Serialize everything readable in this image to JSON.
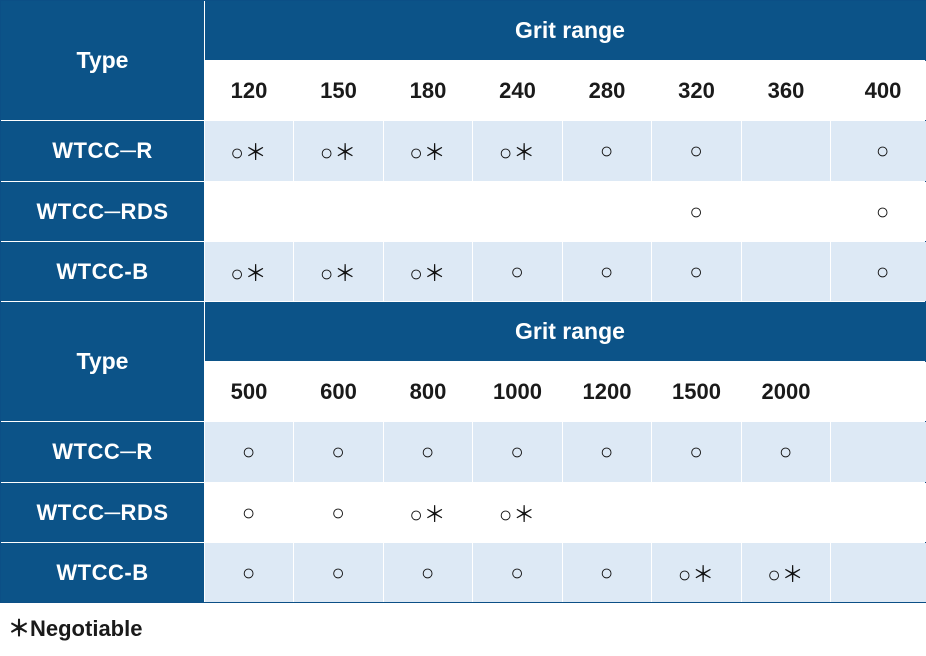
{
  "table1": {
    "type_header": "Type",
    "grit_header": "Grit range",
    "grits": [
      "120",
      "150",
      "180",
      "240",
      "280",
      "320",
      "360",
      "400"
    ],
    "rows": [
      {
        "label": "WTCC─R",
        "cells": [
          "○＊",
          "○＊",
          "○＊",
          "○＊",
          "○",
          "○",
          "",
          "○"
        ]
      },
      {
        "label": "WTCC─RDS",
        "cells": [
          "",
          "",
          "",
          "",
          "",
          "○",
          "",
          "○"
        ]
      },
      {
        "label": "WTCC-B",
        "cells": [
          "○＊",
          "○＊",
          "○＊",
          "○",
          "○",
          "○",
          "",
          "○"
        ]
      }
    ]
  },
  "table2": {
    "type_header": "Type",
    "grit_header": "Grit range",
    "grits": [
      "500",
      "600",
      "800",
      "1000",
      "1200",
      "1500",
      "2000",
      ""
    ],
    "rows": [
      {
        "label": "WTCC─R",
        "cells": [
          "○",
          "○",
          "○",
          "○",
          "○",
          "○",
          "○",
          ""
        ]
      },
      {
        "label": "WTCC─RDS",
        "cells": [
          "○",
          "○",
          "○＊",
          "○＊",
          "",
          "",
          "",
          ""
        ]
      },
      {
        "label": "WTCC-B",
        "cells": [
          "○",
          "○",
          "○",
          "○",
          "○",
          "○＊",
          "○＊",
          ""
        ]
      }
    ]
  },
  "footnote": "＊Negotiable",
  "colors": {
    "header_navy": "#0c5388",
    "alt_row": "#dde9f5",
    "white_row": "#ffffff"
  }
}
